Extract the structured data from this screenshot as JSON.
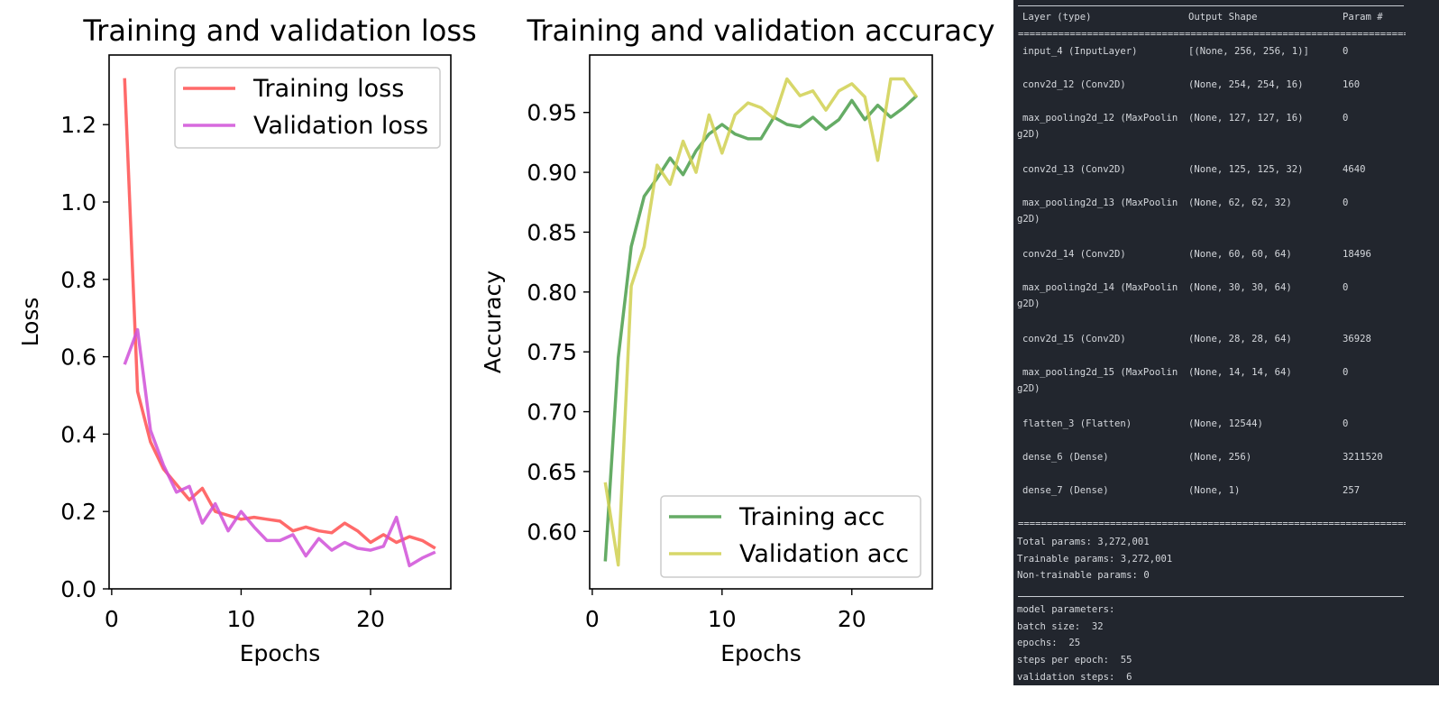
{
  "charts": [
    {
      "id": "loss",
      "chart_data": {
        "type": "line",
        "title": "Training and validation loss",
        "xlabel": "Epochs",
        "ylabel": "Loss",
        "xlim": [
          -0.2,
          26.2
        ],
        "ylim": [
          0.0,
          1.38
        ],
        "xticks": [
          "0",
          "10",
          "20"
        ],
        "yticks": [
          "0.0",
          "0.2",
          "0.4",
          "0.6",
          "0.8",
          "1.0",
          "1.2"
        ],
        "legend_position": "top-right",
        "grid": false,
        "x": [
          1,
          2,
          3,
          4,
          5,
          6,
          7,
          8,
          9,
          10,
          11,
          12,
          13,
          14,
          15,
          16,
          17,
          18,
          19,
          20,
          21,
          22,
          23,
          24,
          25
        ],
        "series": [
          {
            "name": "Training loss",
            "color": "#ff5050",
            "values": [
              1.32,
              0.51,
              0.38,
              0.31,
              0.27,
              0.23,
              0.26,
              0.2,
              0.19,
              0.18,
              0.185,
              0.18,
              0.175,
              0.15,
              0.16,
              0.15,
              0.145,
              0.17,
              0.15,
              0.12,
              0.14,
              0.12,
              0.135,
              0.125,
              0.105
            ]
          },
          {
            "name": "Validation loss",
            "color": "#d050d8",
            "values": [
              0.58,
              0.67,
              0.41,
              0.32,
              0.25,
              0.265,
              0.17,
              0.22,
              0.15,
              0.2,
              0.16,
              0.125,
              0.125,
              0.14,
              0.085,
              0.13,
              0.1,
              0.12,
              0.105,
              0.1,
              0.11,
              0.185,
              0.06,
              0.08,
              0.095
            ]
          }
        ]
      }
    },
    {
      "id": "accuracy",
      "chart_data": {
        "type": "line",
        "title": "Training and validation accuracy",
        "xlabel": "Epochs",
        "ylabel": "Accuracy",
        "xlim": [
          -0.2,
          26.2
        ],
        "ylim": [
          0.552,
          0.998
        ],
        "xticks": [
          "0",
          "10",
          "20"
        ],
        "yticks": [
          "0.60",
          "0.65",
          "0.70",
          "0.75",
          "0.80",
          "0.85",
          "0.90",
          "0.95"
        ],
        "legend_position": "bottom-right",
        "grid": false,
        "x": [
          1,
          2,
          3,
          4,
          5,
          6,
          7,
          8,
          9,
          10,
          11,
          12,
          13,
          14,
          15,
          16,
          17,
          18,
          19,
          20,
          21,
          22,
          23,
          24,
          25
        ],
        "series": [
          {
            "name": "Training acc",
            "color": "#4a9e4a",
            "values": [
              0.575,
              0.745,
              0.838,
              0.88,
              0.895,
              0.912,
              0.898,
              0.918,
              0.932,
              0.94,
              0.932,
              0.928,
              0.928,
              0.946,
              0.94,
              0.938,
              0.946,
              0.936,
              0.944,
              0.96,
              0.944,
              0.956,
              0.946,
              0.954,
              0.964
            ]
          },
          {
            "name": "Validation acc",
            "color": "#d0d050",
            "values": [
              0.641,
              0.572,
              0.805,
              0.838,
              0.906,
              0.89,
              0.926,
              0.9,
              0.948,
              0.916,
              0.948,
              0.958,
              0.954,
              0.945,
              0.978,
              0.964,
              0.968,
              0.952,
              0.968,
              0.974,
              0.963,
              0.91,
              0.978,
              0.978,
              0.963
            ]
          }
        ]
      }
    }
  ],
  "summary": {
    "header": {
      "layer": "Layer (type)",
      "shape": "Output Shape",
      "params": "Param #"
    },
    "double_rule": "=============================================================================================================",
    "layers": [
      {
        "layer": "input_4 (InputLayer)",
        "shape": "[(None, 256, 256, 1)]",
        "params": "0"
      },
      {
        "layer": "conv2d_12 (Conv2D)",
        "shape": "(None, 254, 254, 16)",
        "params": "160"
      },
      {
        "layer": "max_pooling2d_12 (MaxPoolin",
        "layer_cont": "g2D)",
        "shape": "(None, 127, 127, 16)",
        "params": "0"
      },
      {
        "layer": "conv2d_13 (Conv2D)",
        "shape": "(None, 125, 125, 32)",
        "params": "4640"
      },
      {
        "layer": "max_pooling2d_13 (MaxPoolin",
        "layer_cont": "g2D)",
        "shape": "(None, 62, 62, 32)",
        "params": "0"
      },
      {
        "layer": "conv2d_14 (Conv2D)",
        "shape": "(None, 60, 60, 64)",
        "params": "18496"
      },
      {
        "layer": "max_pooling2d_14 (MaxPoolin",
        "layer_cont": "g2D)",
        "shape": "(None, 30, 30, 64)",
        "params": "0"
      },
      {
        "layer": "conv2d_15 (Conv2D)",
        "shape": "(None, 28, 28, 64)",
        "params": "36928"
      },
      {
        "layer": "max_pooling2d_15 (MaxPoolin",
        "layer_cont": "g2D)",
        "shape": "(None, 14, 14, 64)",
        "params": "0"
      },
      {
        "layer": "flatten_3 (Flatten)",
        "shape": "(None, 12544)",
        "params": "0"
      },
      {
        "layer": "dense_6 (Dense)",
        "shape": "(None, 256)",
        "params": "3211520"
      },
      {
        "layer": "dense_7 (Dense)",
        "shape": "(None, 1)",
        "params": "257"
      }
    ],
    "totals": [
      "Total params: 3,272,001",
      "Trainable params: 3,272,001",
      "Non-trainable params: 0"
    ],
    "model_params": [
      "model parameters:",
      "batch size:  32",
      "epochs:  25",
      "steps per epoch:  55",
      "validation steps:  6"
    ]
  }
}
